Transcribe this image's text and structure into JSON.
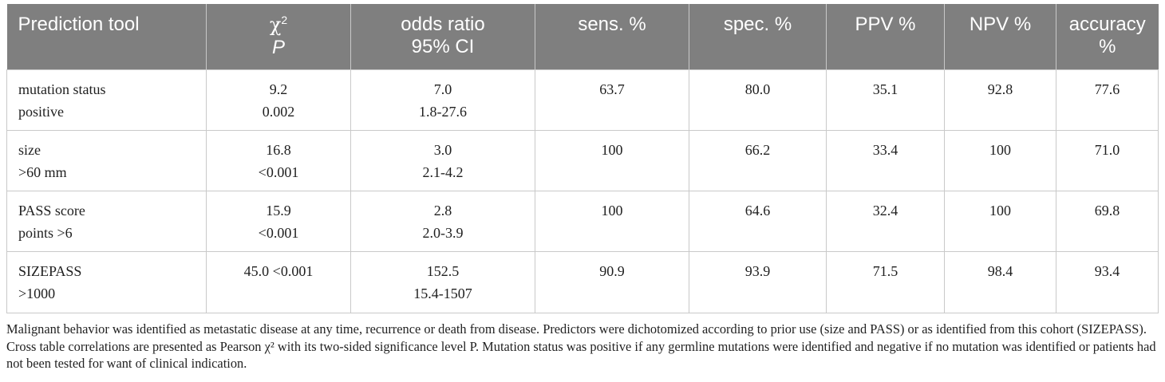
{
  "table": {
    "headers": [
      {
        "line1": "Prediction tool",
        "line2": ""
      },
      {
        "line1": "χ",
        "sup": "2",
        "line2": "P"
      },
      {
        "line1": "odds ratio",
        "line2": "95% CI"
      },
      {
        "line1": "sens. %",
        "line2": ""
      },
      {
        "line1": "spec. %",
        "line2": ""
      },
      {
        "line1": "PPV %",
        "line2": ""
      },
      {
        "line1": "NPV %",
        "line2": ""
      },
      {
        "line1": "accuracy %",
        "line2": ""
      }
    ],
    "rows": [
      {
        "tool": [
          "mutation status",
          "positive"
        ],
        "chi": [
          "9.2",
          "0.002"
        ],
        "or": [
          "7.0",
          "1.8-27.6"
        ],
        "sens": "63.7",
        "spec": "80.0",
        "ppv": "35.1",
        "npv": "92.8",
        "acc": "77.6"
      },
      {
        "tool": [
          "size",
          ">60 mm"
        ],
        "chi": [
          "16.8",
          "<0.001"
        ],
        "or": [
          "3.0",
          "2.1-4.2"
        ],
        "sens": "100",
        "spec": "66.2",
        "ppv": "33.4",
        "npv": "100",
        "acc": "71.0"
      },
      {
        "tool": [
          "PASS score",
          "points >6"
        ],
        "chi": [
          "15.9",
          "<0.001"
        ],
        "or": [
          "2.8",
          "2.0-3.9"
        ],
        "sens": "100",
        "spec": "64.6",
        "ppv": "32.4",
        "npv": "100",
        "acc": "69.8"
      },
      {
        "tool": [
          "SIZEPASS",
          ">1000"
        ],
        "chi": [
          "45.0 <0.001",
          ""
        ],
        "or": [
          "152.5",
          "15.4-1507"
        ],
        "sens": "90.9",
        "spec": "93.9",
        "ppv": "71.5",
        "npv": "98.4",
        "acc": "93.4"
      }
    ]
  },
  "footnote": "Malignant behavior was identified as metastatic disease at any time, recurrence or death from disease. Predictors were dichotomized according to prior use (size and PASS) or as identified from this cohort (SIZEPASS). Cross table correlations are presented as Pearson χ² with its two-sided significance level P. Mutation status was positive if any germline mutations were identified and negative if no mutation was identified or patients had not been tested for want of clinical indication."
}
